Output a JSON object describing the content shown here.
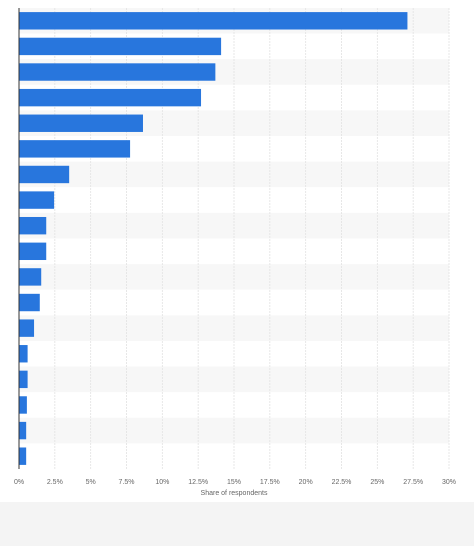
{
  "chart_data": {
    "type": "hbar",
    "categories": [
      null,
      null,
      null,
      null,
      null,
      null,
      null,
      null,
      null,
      null,
      null,
      null,
      null,
      null,
      null,
      null,
      null,
      null
    ],
    "values": [
      27.1,
      14.1,
      13.7,
      12.7,
      8.65,
      7.75,
      3.5,
      2.45,
      1.9,
      1.9,
      1.55,
      1.45,
      1.05,
      0.6,
      0.6,
      0.55,
      0.5,
      0.5
    ],
    "color": "#2876dd",
    "xlabel": "Share of respondents",
    "xlim": [
      0,
      30
    ],
    "xticks": [
      {
        "value": 0,
        "label": "0%"
      },
      {
        "value": 2.5,
        "label": "2.5%"
      },
      {
        "value": 5,
        "label": "5%"
      },
      {
        "value": 7.5,
        "label": "7.5%"
      },
      {
        "value": 10,
        "label": "10%"
      },
      {
        "value": 12.5,
        "label": "12.5%"
      },
      {
        "value": 15,
        "label": "15%"
      },
      {
        "value": 17.5,
        "label": "17.5%"
      },
      {
        "value": 20,
        "label": "20%"
      },
      {
        "value": 22.5,
        "label": "22.5%"
      },
      {
        "value": 25,
        "label": "25%"
      },
      {
        "value": 27.5,
        "label": "27.5%"
      },
      {
        "value": 30,
        "label": "30%"
      }
    ],
    "grid": true
  }
}
